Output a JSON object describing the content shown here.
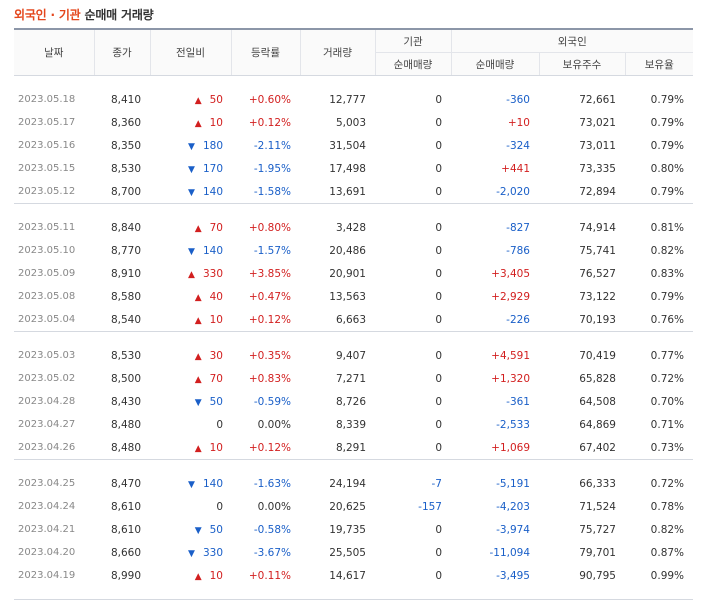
{
  "title": {
    "part1": "외국인 · 기관",
    "part2": "순매매 거래량"
  },
  "headers": {
    "date": "날짜",
    "close": "종가",
    "change": "전일비",
    "rate": "등락률",
    "volume": "거래량",
    "inst": "기관",
    "foreign": "외국인",
    "inst_net": "순매매량",
    "foreign_net": "순매매량",
    "foreign_hold": "보유주수",
    "foreign_ratio": "보유율"
  },
  "groups": [
    [
      {
        "date": "2023.05.18",
        "close": "8,410",
        "dir": "up",
        "change": "50",
        "rate": "+0.60%",
        "volume": "12,777",
        "inst": "0",
        "foreign": "-360",
        "hold": "72,661",
        "ratio": "0.79%"
      },
      {
        "date": "2023.05.17",
        "close": "8,360",
        "dir": "up",
        "change": "10",
        "rate": "+0.12%",
        "volume": "5,003",
        "inst": "0",
        "foreign": "+10",
        "hold": "73,021",
        "ratio": "0.79%"
      },
      {
        "date": "2023.05.16",
        "close": "8,350",
        "dir": "down",
        "change": "180",
        "rate": "-2.11%",
        "volume": "31,504",
        "inst": "0",
        "foreign": "-324",
        "hold": "73,011",
        "ratio": "0.79%"
      },
      {
        "date": "2023.05.15",
        "close": "8,530",
        "dir": "down",
        "change": "170",
        "rate": "-1.95%",
        "volume": "17,498",
        "inst": "0",
        "foreign": "+441",
        "hold": "73,335",
        "ratio": "0.80%"
      },
      {
        "date": "2023.05.12",
        "close": "8,700",
        "dir": "down",
        "change": "140",
        "rate": "-1.58%",
        "volume": "13,691",
        "inst": "0",
        "foreign": "-2,020",
        "hold": "72,894",
        "ratio": "0.79%"
      }
    ],
    [
      {
        "date": "2023.05.11",
        "close": "8,840",
        "dir": "up",
        "change": "70",
        "rate": "+0.80%",
        "volume": "3,428",
        "inst": "0",
        "foreign": "-827",
        "hold": "74,914",
        "ratio": "0.81%"
      },
      {
        "date": "2023.05.10",
        "close": "8,770",
        "dir": "down",
        "change": "140",
        "rate": "-1.57%",
        "volume": "20,486",
        "inst": "0",
        "foreign": "-786",
        "hold": "75,741",
        "ratio": "0.82%"
      },
      {
        "date": "2023.05.09",
        "close": "8,910",
        "dir": "up",
        "change": "330",
        "rate": "+3.85%",
        "volume": "20,901",
        "inst": "0",
        "foreign": "+3,405",
        "hold": "76,527",
        "ratio": "0.83%"
      },
      {
        "date": "2023.05.08",
        "close": "8,580",
        "dir": "up",
        "change": "40",
        "rate": "+0.47%",
        "volume": "13,563",
        "inst": "0",
        "foreign": "+2,929",
        "hold": "73,122",
        "ratio": "0.79%"
      },
      {
        "date": "2023.05.04",
        "close": "8,540",
        "dir": "up",
        "change": "10",
        "rate": "+0.12%",
        "volume": "6,663",
        "inst": "0",
        "foreign": "-226",
        "hold": "70,193",
        "ratio": "0.76%"
      }
    ],
    [
      {
        "date": "2023.05.03",
        "close": "8,530",
        "dir": "up",
        "change": "30",
        "rate": "+0.35%",
        "volume": "9,407",
        "inst": "0",
        "foreign": "+4,591",
        "hold": "70,419",
        "ratio": "0.77%"
      },
      {
        "date": "2023.05.02",
        "close": "8,500",
        "dir": "up",
        "change": "70",
        "rate": "+0.83%",
        "volume": "7,271",
        "inst": "0",
        "foreign": "+1,320",
        "hold": "65,828",
        "ratio": "0.72%"
      },
      {
        "date": "2023.04.28",
        "close": "8,430",
        "dir": "down",
        "change": "50",
        "rate": "-0.59%",
        "volume": "8,726",
        "inst": "0",
        "foreign": "-361",
        "hold": "64,508",
        "ratio": "0.70%"
      },
      {
        "date": "2023.04.27",
        "close": "8,480",
        "dir": "flat",
        "change": "0",
        "rate": "0.00%",
        "volume": "8,339",
        "inst": "0",
        "foreign": "-2,533",
        "hold": "64,869",
        "ratio": "0.71%"
      },
      {
        "date": "2023.04.26",
        "close": "8,480",
        "dir": "up",
        "change": "10",
        "rate": "+0.12%",
        "volume": "8,291",
        "inst": "0",
        "foreign": "+1,069",
        "hold": "67,402",
        "ratio": "0.73%"
      }
    ],
    [
      {
        "date": "2023.04.25",
        "close": "8,470",
        "dir": "down",
        "change": "140",
        "rate": "-1.63%",
        "volume": "24,194",
        "inst": "-7",
        "foreign": "-5,191",
        "hold": "66,333",
        "ratio": "0.72%"
      },
      {
        "date": "2023.04.24",
        "close": "8,610",
        "dir": "flat",
        "change": "0",
        "rate": "0.00%",
        "volume": "20,625",
        "inst": "-157",
        "foreign": "-4,203",
        "hold": "71,524",
        "ratio": "0.78%"
      },
      {
        "date": "2023.04.21",
        "close": "8,610",
        "dir": "down",
        "change": "50",
        "rate": "-0.58%",
        "volume": "19,735",
        "inst": "0",
        "foreign": "-3,974",
        "hold": "75,727",
        "ratio": "0.82%"
      },
      {
        "date": "2023.04.20",
        "close": "8,660",
        "dir": "down",
        "change": "330",
        "rate": "-3.67%",
        "volume": "25,505",
        "inst": "0",
        "foreign": "-11,094",
        "hold": "79,701",
        "ratio": "0.87%"
      },
      {
        "date": "2023.04.19",
        "close": "8,990",
        "dir": "up",
        "change": "10",
        "rate": "+0.11%",
        "volume": "14,617",
        "inst": "0",
        "foreign": "-3,495",
        "hold": "90,795",
        "ratio": "0.99%"
      }
    ]
  ],
  "colors": {
    "up": "#d21f1f",
    "down": "#1a5fc8",
    "title_accent": "#e4461c"
  },
  "icons": {
    "up": "triangle-up-icon",
    "down": "triangle-down-icon"
  }
}
